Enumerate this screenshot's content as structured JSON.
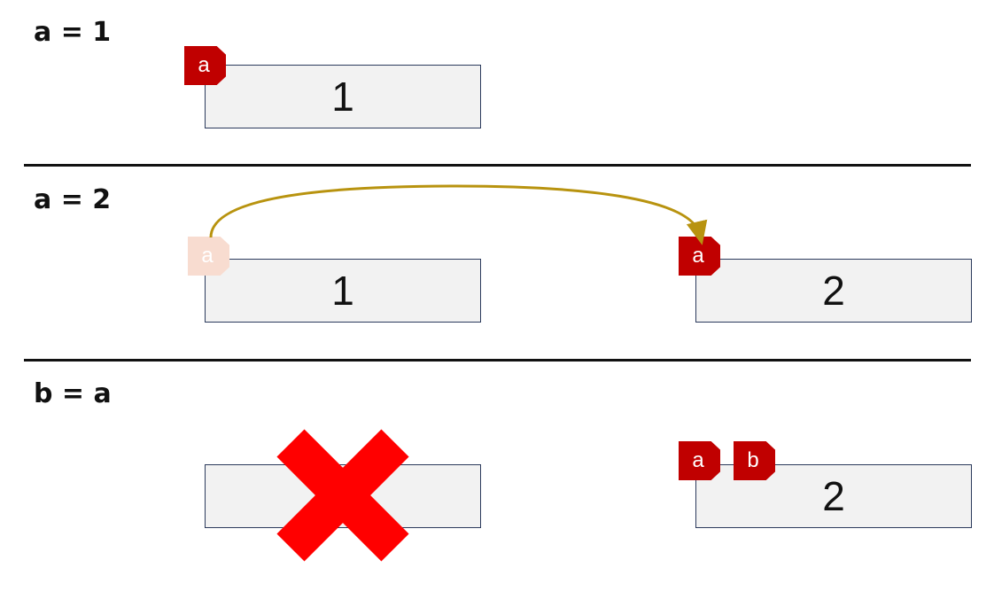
{
  "colors": {
    "tag": "#c00000",
    "tag_faded": "#f8dcd0",
    "box_fill": "#f2f2f2",
    "box_border": "#2b3a5c",
    "arrow": "#b8930f",
    "cross": "#ff0000"
  },
  "step1": {
    "code": "a = 1",
    "box_value": "1",
    "tag_a": "a"
  },
  "step2": {
    "code": "a = 2",
    "old_box_value": "1",
    "old_tag": "a",
    "new_box_value": "2",
    "new_tag": "a"
  },
  "step3": {
    "code": "b = a",
    "box_value": "2",
    "tag_a": "a",
    "tag_b": "b"
  }
}
